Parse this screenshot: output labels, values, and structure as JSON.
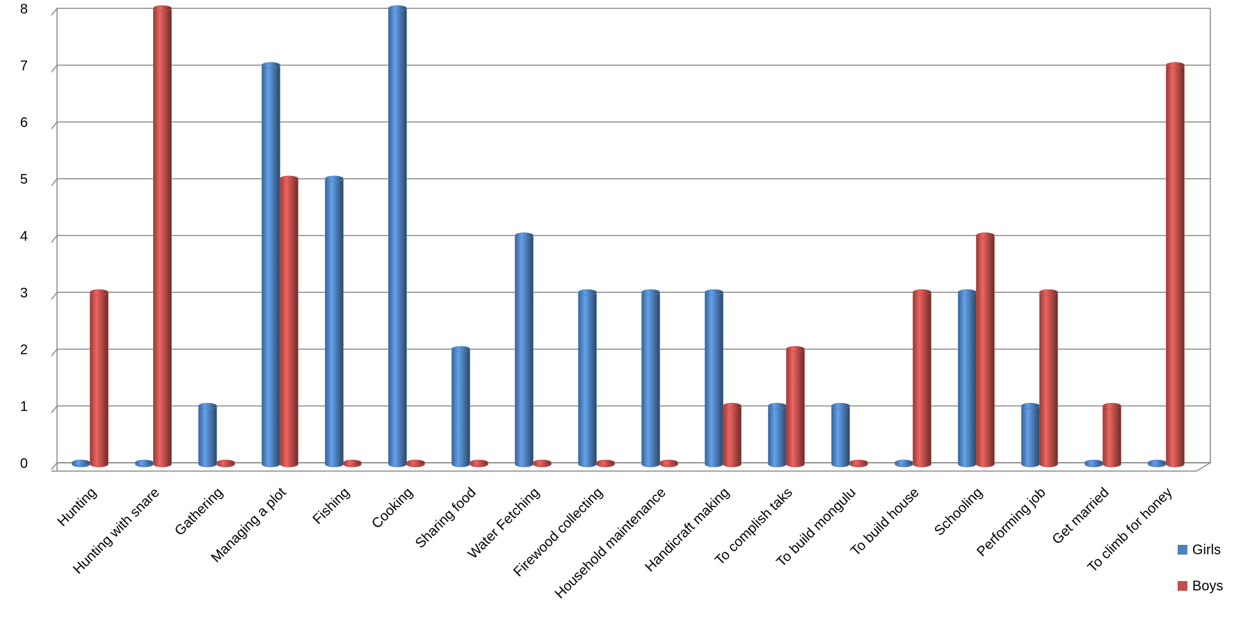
{
  "chart_data": {
    "type": "bar",
    "categories": [
      "Hunting",
      "Hunting with snare",
      "Gathering",
      "Managing a plot",
      "Fishing",
      "Cooking",
      "Sharing food",
      "Water Fetching",
      "Firewood collecting",
      "Household maintenance",
      "Handicraft making",
      "To complish taks",
      "To build mongulu",
      "To build house",
      "Schooling",
      "Performing job",
      "Get married",
      "To climb for honey"
    ],
    "series": [
      {
        "name": "Girls",
        "color": "#4f81bd",
        "values": [
          0,
          0,
          1,
          7,
          5,
          8,
          2,
          4,
          3,
          3,
          3,
          1,
          1,
          0,
          3,
          1,
          0,
          0
        ]
      },
      {
        "name": "Boys",
        "color": "#c0504d",
        "values": [
          3,
          8,
          0,
          5,
          0,
          0,
          0,
          0,
          0,
          0,
          1,
          2,
          0,
          3,
          4,
          3,
          1,
          7
        ]
      }
    ],
    "ylim": [
      0,
      8
    ],
    "yticks": [
      0,
      1,
      2,
      3,
      4,
      5,
      6,
      7,
      8
    ],
    "grid": true,
    "legend": "bottom-right"
  }
}
